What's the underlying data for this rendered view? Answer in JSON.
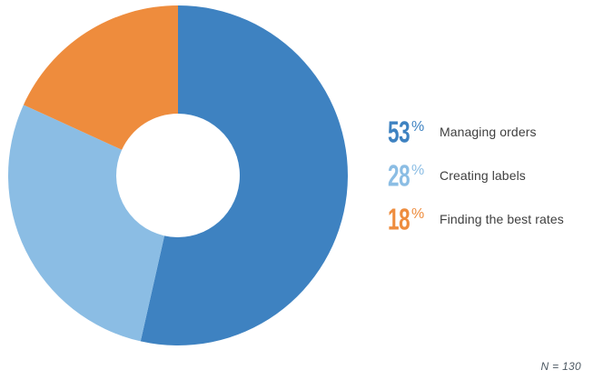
{
  "chart_data": {
    "type": "pie",
    "subtype": "donut",
    "categories": [
      "Managing orders",
      "Creating labels",
      "Finding the best rates"
    ],
    "values": [
      53,
      28,
      18
    ],
    "unit": "%",
    "colors": [
      "#3E82C1",
      "#8BBDE4",
      "#EE8C3D"
    ],
    "start_angle_deg": 0,
    "direction": "clockwise",
    "inner_radius_ratio": 0.36,
    "legend_position": "right",
    "annotation": "N = 130",
    "background_color": "#FFFFFF",
    "title": ""
  },
  "legend": {
    "items": [
      {
        "value": "53",
        "unit": "%",
        "label": "Managing orders"
      },
      {
        "value": "28",
        "unit": "%",
        "label": "Creating labels"
      },
      {
        "value": "18",
        "unit": "%",
        "label": "Finding the best rates"
      }
    ]
  },
  "footer": {
    "sample_size_label": "N = 130"
  }
}
